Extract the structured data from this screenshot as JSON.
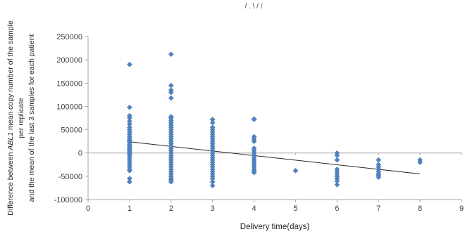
{
  "chart_data": {
    "type": "scatter",
    "title_fragment": "/ . \\ / /",
    "xlabel": "Delivery time(days)",
    "ylabel": {
      "line1_prefix": "Difference between ",
      "line1_italic": "ABL1",
      "line1_suffix": " mean copy number of the sample",
      "line2": "per replicate",
      "line3": "and the mean of the last 3 samples for each patient"
    },
    "xlim": [
      0,
      9
    ],
    "ylim": [
      -100000,
      250000
    ],
    "x_ticks": [
      "0",
      "1",
      "2",
      "3",
      "4",
      "5",
      "6",
      "7",
      "8",
      "9"
    ],
    "x_tick_values": [
      0,
      1,
      2,
      3,
      4,
      5,
      6,
      7,
      8,
      9
    ],
    "y_ticks": [
      "250000",
      "200000",
      "150000",
      "100000",
      "50000",
      "0",
      "-50000",
      "-100000"
    ],
    "y_tick_values": [
      250000,
      200000,
      150000,
      100000,
      50000,
      0,
      -50000,
      -100000
    ],
    "grid": false,
    "marker_color": "#4f81bd",
    "trendline_color": "#262626",
    "trendline": {
      "x": [
        1,
        8
      ],
      "y": [
        24000,
        -45000
      ]
    },
    "series": [
      {
        "points": [
          [
            1,
            190000
          ],
          [
            1,
            98000
          ],
          [
            1,
            80000
          ],
          [
            1,
            75000
          ],
          [
            1,
            68000
          ],
          [
            1,
            62000
          ],
          [
            1,
            55000
          ],
          [
            1,
            50000
          ],
          [
            1,
            45000
          ],
          [
            1,
            40000
          ],
          [
            1,
            35000
          ],
          [
            1,
            30000
          ],
          [
            1,
            28000
          ],
          [
            1,
            25000
          ],
          [
            1,
            22000
          ],
          [
            1,
            18000
          ],
          [
            1,
            15000
          ],
          [
            1,
            12000
          ],
          [
            1,
            8000
          ],
          [
            1,
            5000
          ],
          [
            1,
            2000
          ],
          [
            1,
            -2000
          ],
          [
            1,
            -5000
          ],
          [
            1,
            -10000
          ],
          [
            1,
            -15000
          ],
          [
            1,
            -20000
          ],
          [
            1,
            -25000
          ],
          [
            1,
            -30000
          ],
          [
            1,
            -35000
          ],
          [
            1,
            -38000
          ],
          [
            1,
            -55000
          ],
          [
            1,
            -62000
          ],
          [
            2,
            212000
          ],
          [
            2,
            145000
          ],
          [
            2,
            135000
          ],
          [
            2,
            130000
          ],
          [
            2,
            118000
          ],
          [
            2,
            78000
          ],
          [
            2,
            75000
          ],
          [
            2,
            70000
          ],
          [
            2,
            65000
          ],
          [
            2,
            60000
          ],
          [
            2,
            55000
          ],
          [
            2,
            50000
          ],
          [
            2,
            45000
          ],
          [
            2,
            40000
          ],
          [
            2,
            35000
          ],
          [
            2,
            30000
          ],
          [
            2,
            25000
          ],
          [
            2,
            20000
          ],
          [
            2,
            15000
          ],
          [
            2,
            10000
          ],
          [
            2,
            5000
          ],
          [
            2,
            0
          ],
          [
            2,
            -5000
          ],
          [
            2,
            -10000
          ],
          [
            2,
            -15000
          ],
          [
            2,
            -20000
          ],
          [
            2,
            -25000
          ],
          [
            2,
            -30000
          ],
          [
            2,
            -35000
          ],
          [
            2,
            -40000
          ],
          [
            2,
            -45000
          ],
          [
            2,
            -50000
          ],
          [
            2,
            -55000
          ],
          [
            2,
            -58000
          ],
          [
            2,
            -62000
          ],
          [
            3,
            72000
          ],
          [
            3,
            65000
          ],
          [
            3,
            55000
          ],
          [
            3,
            50000
          ],
          [
            3,
            45000
          ],
          [
            3,
            40000
          ],
          [
            3,
            35000
          ],
          [
            3,
            30000
          ],
          [
            3,
            25000
          ],
          [
            3,
            20000
          ],
          [
            3,
            15000
          ],
          [
            3,
            10000
          ],
          [
            3,
            5000
          ],
          [
            3,
            0
          ],
          [
            3,
            -5000
          ],
          [
            3,
            -10000
          ],
          [
            3,
            -15000
          ],
          [
            3,
            -20000
          ],
          [
            3,
            -25000
          ],
          [
            3,
            -30000
          ],
          [
            3,
            -35000
          ],
          [
            3,
            -40000
          ],
          [
            3,
            -45000
          ],
          [
            3,
            -50000
          ],
          [
            3,
            -55000
          ],
          [
            3,
            -62000
          ],
          [
            3,
            -70000
          ],
          [
            4,
            73000
          ],
          [
            4,
            72000
          ],
          [
            4,
            35000
          ],
          [
            4,
            30000
          ],
          [
            4,
            25000
          ],
          [
            4,
            10000
          ],
          [
            4,
            5000
          ],
          [
            4,
            0
          ],
          [
            4,
            -5000
          ],
          [
            4,
            -10000
          ],
          [
            4,
            -15000
          ],
          [
            4,
            -20000
          ],
          [
            4,
            -25000
          ],
          [
            4,
            -30000
          ],
          [
            4,
            -35000
          ],
          [
            4,
            -38000
          ],
          [
            4,
            -42000
          ],
          [
            5,
            -38000
          ],
          [
            6,
            0
          ],
          [
            6,
            -5000
          ],
          [
            6,
            -15000
          ],
          [
            6,
            -35000
          ],
          [
            6,
            -40000
          ],
          [
            6,
            -45000
          ],
          [
            6,
            -50000
          ],
          [
            6,
            -55000
          ],
          [
            6,
            -60000
          ],
          [
            6,
            -68000
          ],
          [
            7,
            -15000
          ],
          [
            7,
            -25000
          ],
          [
            7,
            -30000
          ],
          [
            7,
            -35000
          ],
          [
            7,
            -40000
          ],
          [
            7,
            -45000
          ],
          [
            7,
            -48000
          ],
          [
            7,
            -52000
          ],
          [
            8,
            -15000
          ],
          [
            8,
            -20000
          ]
        ]
      }
    ]
  }
}
